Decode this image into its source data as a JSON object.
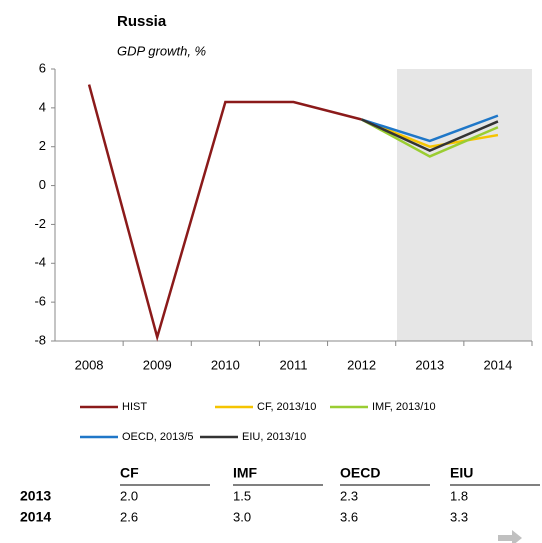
{
  "chart_data": {
    "type": "line",
    "title": "Russia",
    "subtitle": "GDP growth, %",
    "categories": [
      "2008",
      "2009",
      "2010",
      "2011",
      "2012",
      "2013",
      "2014"
    ],
    "series": [
      {
        "name": "HIST",
        "color": "#8b1a1a",
        "values": [
          5.2,
          -7.8,
          4.3,
          4.3,
          3.4,
          null,
          null
        ]
      },
      {
        "name": "CF, 2013/10",
        "color": "#f5c400",
        "values": [
          null,
          null,
          null,
          null,
          3.4,
          2.0,
          2.6
        ]
      },
      {
        "name": "IMF, 2013/10",
        "color": "#9acd32",
        "values": [
          null,
          null,
          null,
          null,
          3.4,
          1.5,
          3.0
        ]
      },
      {
        "name": "OECD, 2013/5",
        "color": "#1f77c8",
        "values": [
          null,
          null,
          null,
          null,
          3.4,
          2.3,
          3.6
        ]
      },
      {
        "name": "EIU, 2013/10",
        "color": "#333333",
        "values": [
          null,
          null,
          null,
          null,
          3.4,
          1.8,
          3.3
        ]
      }
    ],
    "ylim": [
      -8,
      6
    ],
    "yticks": [
      -8,
      -6,
      -4,
      -2,
      0,
      2,
      4,
      6
    ],
    "grid": false
  },
  "table": {
    "columns": [
      "CF",
      "IMF",
      "OECD",
      "EIU"
    ],
    "rows": [
      {
        "label": "2013",
        "cells": [
          "2.0",
          "1.5",
          "2.3",
          "1.8"
        ]
      },
      {
        "label": "2014",
        "cells": [
          "2.6",
          "3.0",
          "3.6",
          "3.3"
        ]
      }
    ]
  }
}
